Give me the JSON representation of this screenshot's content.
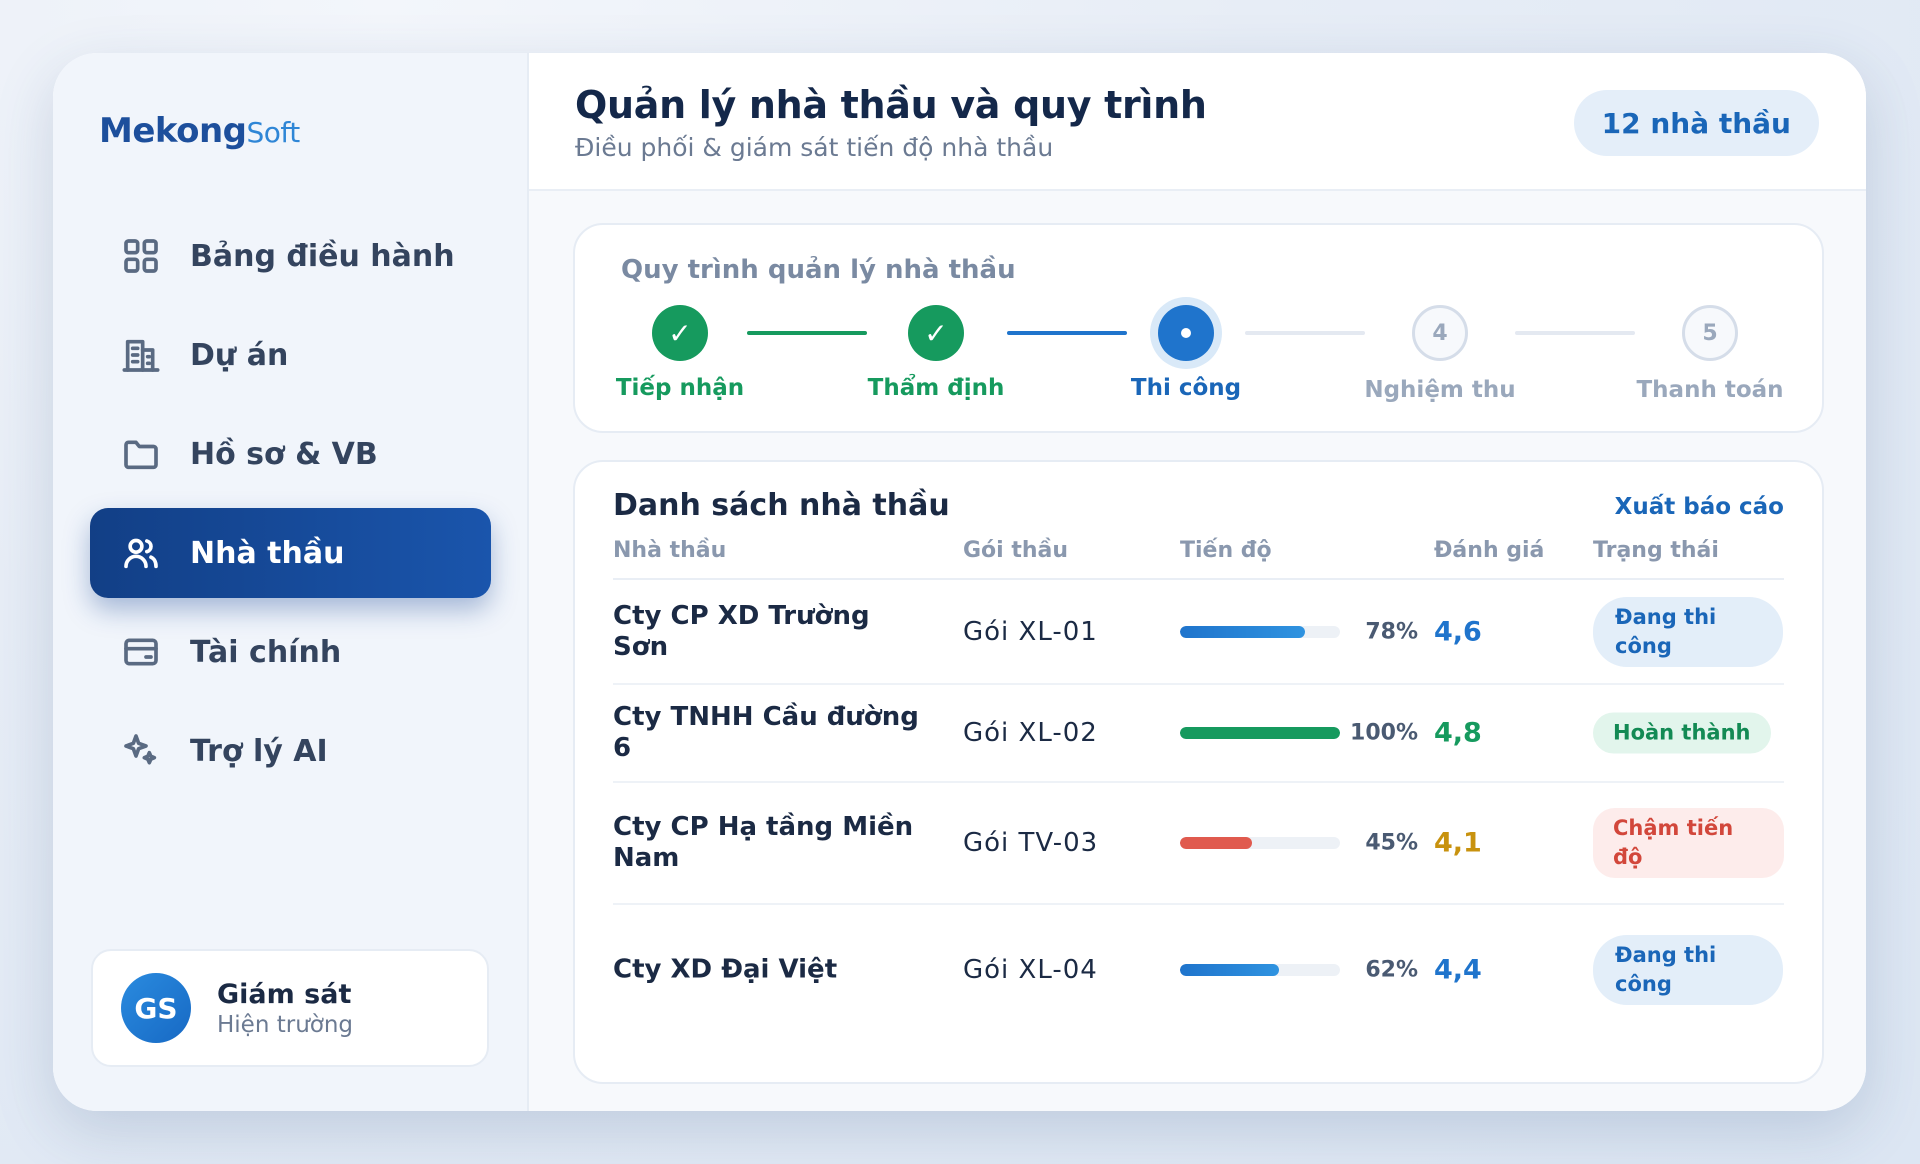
{
  "brand": {
    "name_main": "Mekong",
    "name_suffix": "Soft"
  },
  "sidebar": {
    "items": [
      {
        "label": "Bảng điều hành",
        "icon": "grid-icon"
      },
      {
        "label": "Dự án",
        "icon": "building-icon"
      },
      {
        "label": "Hồ sơ & VB",
        "icon": "folder-icon"
      },
      {
        "label": "Nhà thầu",
        "icon": "users-icon",
        "active": true
      },
      {
        "label": "Tài chính",
        "icon": "card-icon"
      },
      {
        "label": "Trợ lý AI",
        "icon": "sparkle-icon"
      }
    ],
    "user": {
      "initials": "GS",
      "name": "Giám sát",
      "role": "Hiện trường"
    }
  },
  "header": {
    "title": "Quản lý nhà thầu và quy trình",
    "subtitle": "Điều phối & giám sát tiến độ nhà thầu",
    "count_badge": "12 nhà thầu"
  },
  "process": {
    "title": "Quy trình quản lý nhà thầu",
    "steps": [
      {
        "label": "Tiếp nhận",
        "state": "done",
        "marker": "✓"
      },
      {
        "label": "Thẩm định",
        "state": "done",
        "marker": "✓"
      },
      {
        "label": "Thi công",
        "state": "current",
        "marker": ""
      },
      {
        "label": "Nghiệm thu",
        "state": "pending",
        "marker": "4"
      },
      {
        "label": "Thanh toán",
        "state": "pending",
        "marker": "5"
      }
    ]
  },
  "contractors": {
    "title": "Danh sách nhà thầu",
    "export_label": "Xuất báo cáo",
    "columns": {
      "name": "Nhà thầu",
      "package": "Gói thầu",
      "progress": "Tiến độ",
      "rating": "Đánh giá",
      "status": "Trạng thái"
    },
    "rows": [
      {
        "name": "Cty CP XD Trường Sơn",
        "package": "Gói XL-01",
        "progress": 78,
        "progress_label": "78%",
        "rating": "4,6",
        "status": "Đang thi công",
        "tone": "blue"
      },
      {
        "name": "Cty TNHH Cầu đường 6",
        "package": "Gói XL-02",
        "progress": 100,
        "progress_label": "100%",
        "rating": "4,8",
        "status": "Hoàn thành",
        "tone": "green"
      },
      {
        "name": "Cty CP Hạ tầng Miền Nam",
        "package": "Gói TV-03",
        "progress": 45,
        "progress_label": "45%",
        "rating": "4,1",
        "status": "Chậm tiến độ",
        "tone": "red"
      },
      {
        "name": "Cty XD Đại Việt",
        "package": "Gói XL-04",
        "progress": 62,
        "progress_label": "62%",
        "rating": "4,4",
        "status": "Đang thi công",
        "tone": "blue"
      }
    ]
  },
  "colors": {
    "blue": "#1f74cc",
    "green": "#169a5e",
    "red": "#e05a4e",
    "amber": "#c8920e",
    "primary_dark": "#123f86"
  }
}
